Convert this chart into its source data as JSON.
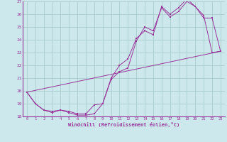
{
  "xlabel": "Windchill (Refroidissement éolien,°C)",
  "bg_color": "#cce8ec",
  "grid_color": "#aacccc",
  "line_color": "#993399",
  "spine_color": "#993399",
  "xlim": [
    -0.5,
    23.5
  ],
  "ylim": [
    18,
    27
  ],
  "xticks": [
    0,
    1,
    2,
    3,
    4,
    5,
    6,
    7,
    8,
    9,
    10,
    11,
    12,
    13,
    14,
    15,
    16,
    17,
    18,
    19,
    20,
    21,
    22,
    23
  ],
  "yticks": [
    18,
    19,
    20,
    21,
    22,
    23,
    24,
    25,
    26,
    27
  ],
  "line1_x": [
    0,
    1,
    2,
    3,
    4,
    5,
    6,
    7,
    8,
    9,
    10,
    11,
    12,
    13,
    14,
    15,
    16,
    17,
    18,
    19,
    20,
    21,
    22,
    23
  ],
  "line1_y": [
    19.9,
    19.0,
    18.5,
    18.3,
    18.5,
    18.3,
    18.1,
    18.1,
    18.2,
    19.0,
    20.9,
    21.5,
    21.8,
    23.9,
    25.0,
    24.7,
    26.5,
    25.8,
    26.2,
    27.0,
    26.6,
    25.7,
    25.7,
    23.1
  ],
  "line2_x": [
    0,
    1,
    2,
    3,
    4,
    5,
    6,
    7,
    8,
    9,
    10,
    11,
    12,
    13,
    14,
    15,
    16,
    17,
    18,
    19,
    20,
    21,
    22,
    23
  ],
  "line2_y": [
    19.9,
    19.0,
    18.5,
    18.4,
    18.5,
    18.4,
    18.2,
    18.2,
    18.9,
    19.0,
    21.0,
    22.0,
    22.5,
    24.1,
    24.7,
    24.4,
    26.6,
    26.0,
    26.5,
    27.2,
    26.6,
    25.9,
    23.0,
    23.1
  ],
  "line3_x": [
    0,
    23
  ],
  "line3_y": [
    19.9,
    23.1
  ]
}
